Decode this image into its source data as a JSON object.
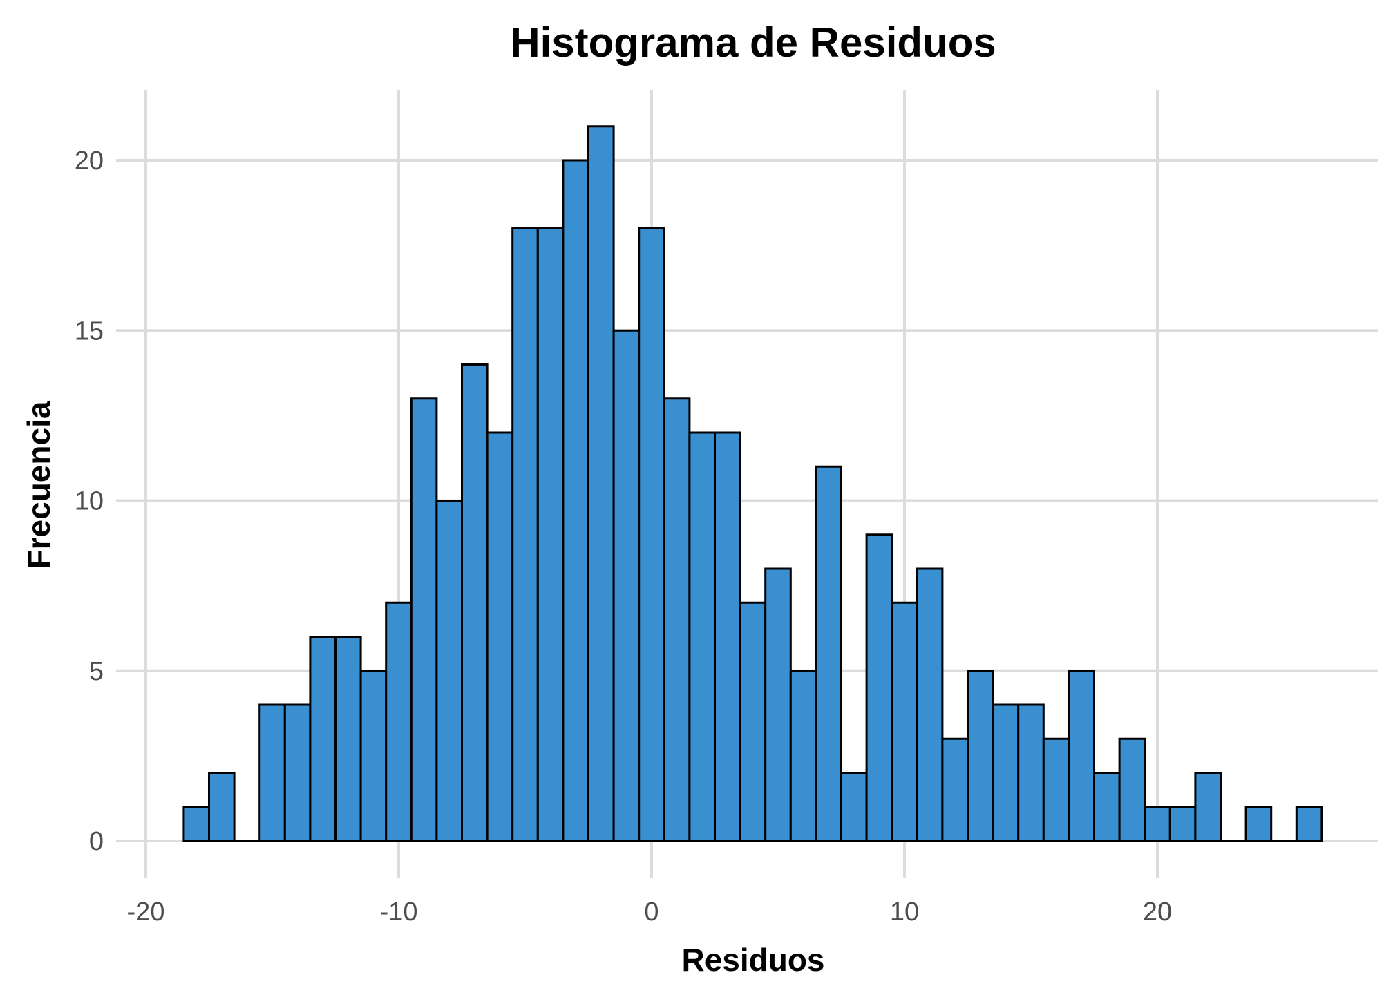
{
  "chart_data": {
    "type": "bar",
    "title": "Histograma de Residuos",
    "xlabel": "Residuos",
    "ylabel": "Frecuencia",
    "bar_color": "#3a8fd1",
    "bar_outline": "#000000",
    "grid": true,
    "xlim": [
      -20,
      28
    ],
    "ylim": [
      0,
      22
    ],
    "xticks": [
      -20,
      -10,
      0,
      10,
      20
    ],
    "xtick_labels": [
      "-20",
      "-10",
      "0",
      "10",
      "20"
    ],
    "yticks": [
      0,
      5,
      10,
      15,
      20
    ],
    "ytick_labels": [
      "0",
      "5",
      "10",
      "15",
      "20"
    ],
    "bin_start": -18.5,
    "bin_width": 1,
    "values": [
      1,
      2,
      0,
      4,
      4,
      6,
      6,
      5,
      7,
      13,
      10,
      14,
      12,
      18,
      18,
      20,
      21,
      15,
      18,
      13,
      12,
      12,
      7,
      8,
      5,
      11,
      2,
      9,
      7,
      8,
      3,
      5,
      4,
      4,
      3,
      5,
      2,
      3,
      1,
      1,
      2,
      0,
      1,
      0,
      1
    ]
  }
}
